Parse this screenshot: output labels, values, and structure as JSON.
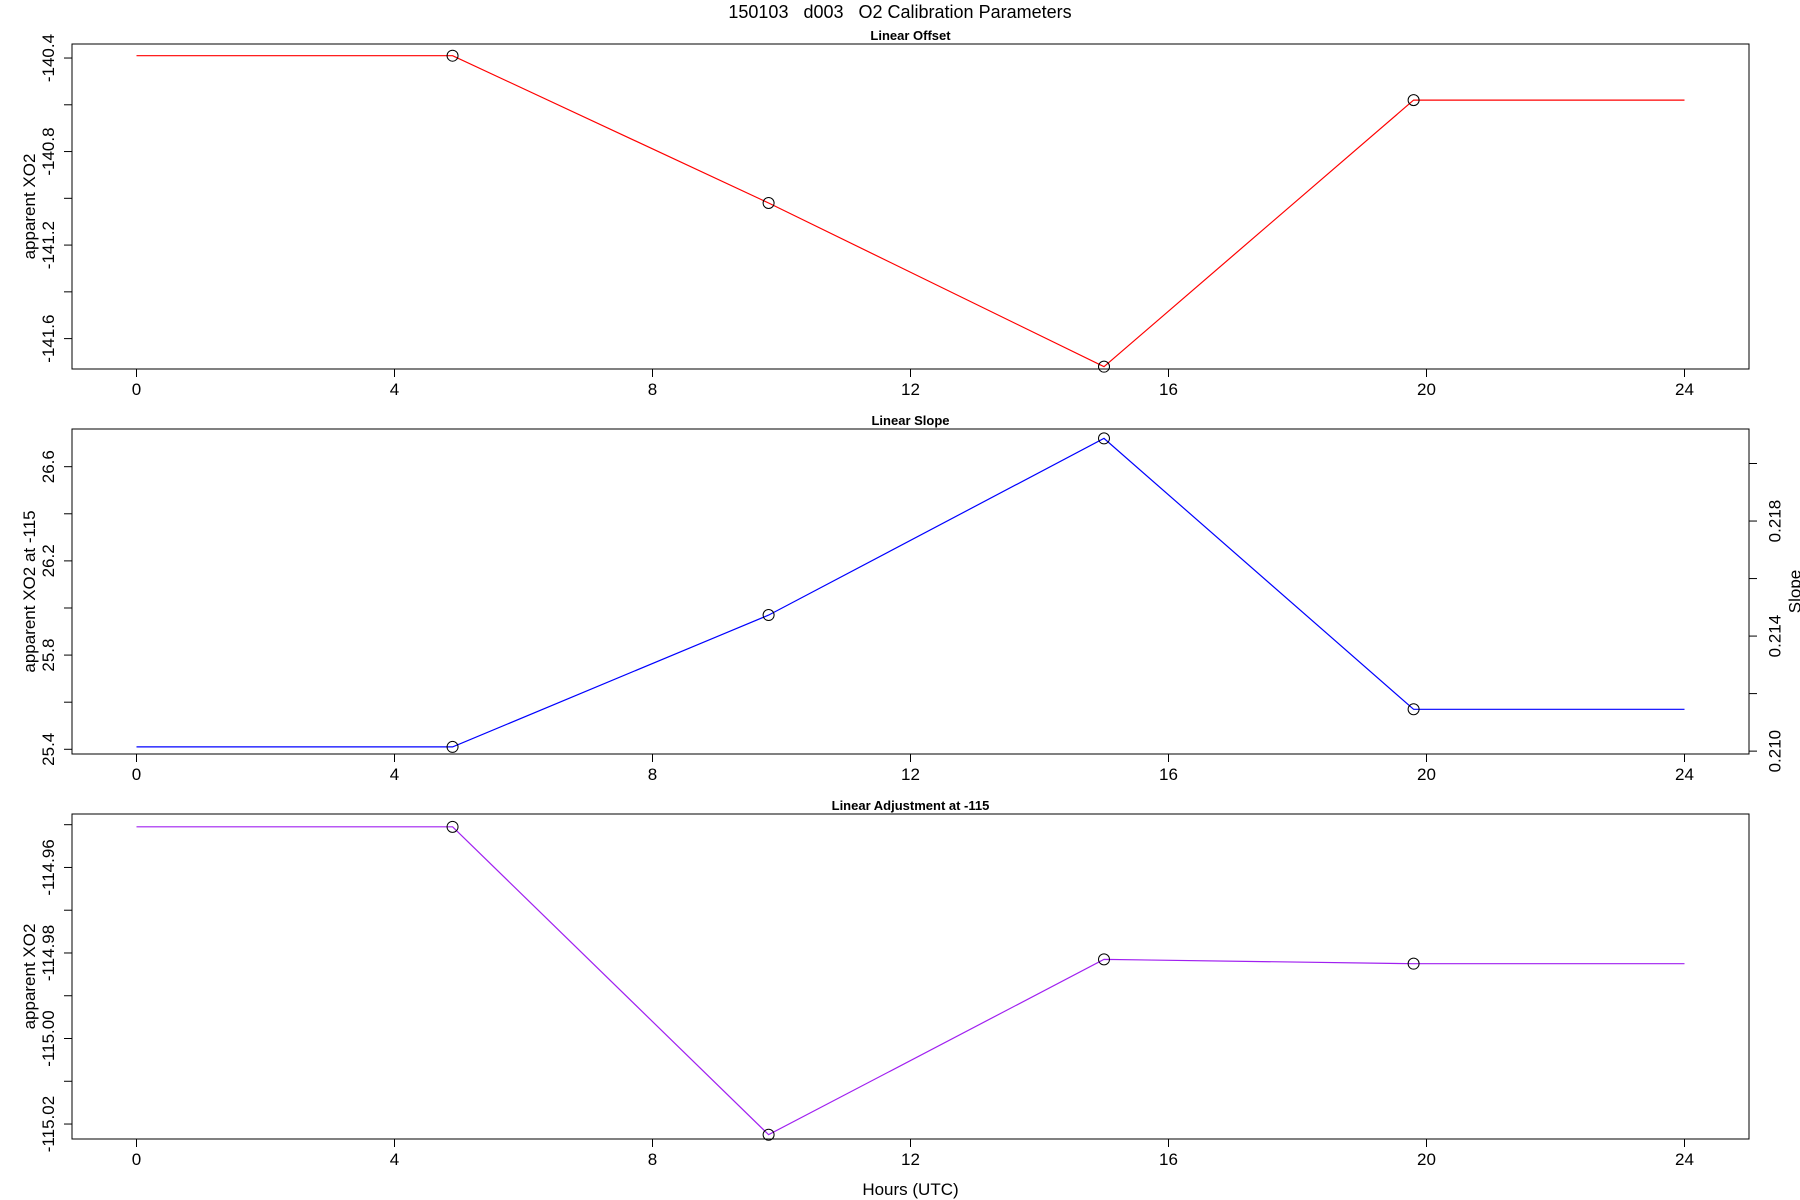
{
  "page": {
    "title": "150103   d003   O2 Calibration Parameters"
  },
  "chart_data": [
    {
      "type": "line",
      "title": "Linear Offset",
      "xlabel": "",
      "ylabel": "apparent XO2",
      "xlim": [
        -1,
        25
      ],
      "ylim": [
        -141.73,
        -140.34
      ],
      "xticks": [
        "0",
        "4",
        "8",
        "12",
        "16",
        "20",
        "24"
      ],
      "yticks": [
        "-140.4",
        "-140.8",
        "-141.2",
        "-141.6"
      ],
      "y_minor_ticks": [
        -140.6,
        -141.0,
        -141.4
      ],
      "color": "#ff0000",
      "series": [
        {
          "x": [
            0,
            4.9,
            9.8,
            15.0,
            19.8,
            24
          ],
          "y": [
            -140.39,
            -140.39,
            -141.02,
            -141.72,
            -140.58,
            -140.58
          ]
        }
      ],
      "markers_x": [
        4.9,
        9.8,
        15.0,
        19.8
      ],
      "markers_y": [
        -140.39,
        -141.02,
        -141.72,
        -140.58
      ]
    },
    {
      "type": "line",
      "title": "Linear Slope",
      "xlabel": "",
      "ylabel": "apparent XO2 at -115",
      "y2label": "Slope",
      "xlim": [
        -1,
        25
      ],
      "ylim": [
        25.38,
        26.76
      ],
      "y2lim": [
        0.2099,
        0.2212
      ],
      "xticks": [
        "0",
        "4",
        "8",
        "12",
        "16",
        "20",
        "24"
      ],
      "yticks": [
        "25.4",
        "25.8",
        "26.2",
        "26.6"
      ],
      "y_minor_ticks": [
        25.6,
        26.0,
        26.4
      ],
      "y2ticks": [
        "0.210",
        "0.214",
        "0.218"
      ],
      "y2_minor_ticks": [
        0.212,
        0.216,
        0.22
      ],
      "color": "#0000ff",
      "series": [
        {
          "x": [
            0,
            4.9,
            9.8,
            15.0,
            19.8,
            24
          ],
          "y": [
            25.41,
            25.41,
            25.97,
            26.72,
            25.57,
            25.57
          ]
        }
      ],
      "markers_x": [
        4.9,
        9.8,
        15.0,
        19.8
      ],
      "markers_y": [
        25.41,
        25.97,
        26.72,
        25.57
      ]
    },
    {
      "type": "line",
      "title": "Linear Adjustment at -115",
      "xlabel": "Hours (UTC)",
      "ylabel": "apparent XO2",
      "xlim": [
        -1,
        25
      ],
      "ylim": [
        -115.0235,
        -114.9475
      ],
      "xticks": [
        "0",
        "4",
        "8",
        "12",
        "16",
        "20",
        "24"
      ],
      "yticks": [
        "-114.96",
        "-114.98",
        "-115.00",
        "-115.02"
      ],
      "y_minor_ticks": [
        -114.95,
        -114.97,
        -114.99,
        -115.01
      ],
      "color": "#a020f0",
      "series": [
        {
          "x": [
            0,
            4.9,
            9.8,
            15.0,
            19.8,
            24
          ],
          "y": [
            -114.9505,
            -114.9505,
            -115.0225,
            -114.9815,
            -114.9825,
            -114.9825
          ]
        }
      ],
      "markers_x": [
        4.9,
        9.8,
        15.0,
        19.8
      ],
      "markers_y": [
        -114.9505,
        -115.0225,
        -114.9815,
        -114.9825
      ]
    }
  ]
}
